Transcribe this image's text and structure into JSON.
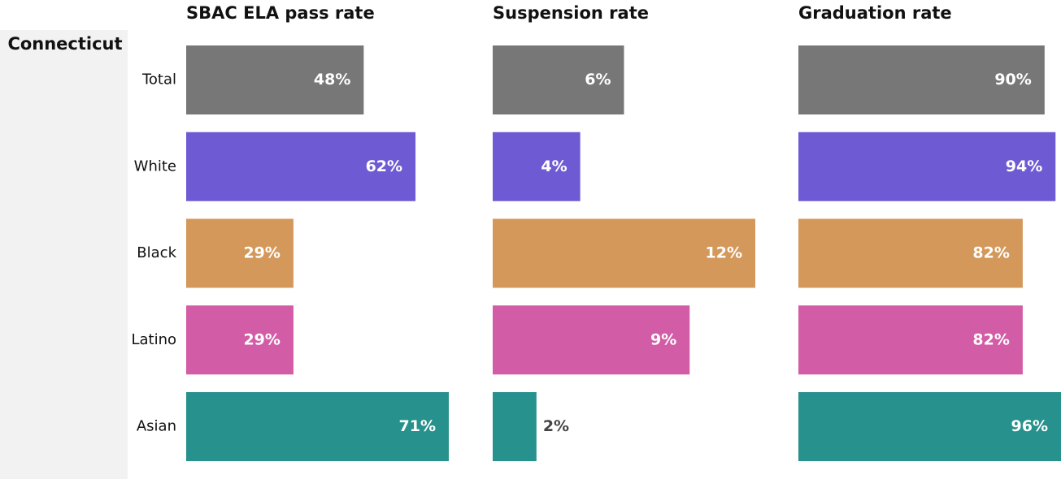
{
  "region": "Connecticut",
  "chart_data": [
    {
      "type": "bar",
      "title": "SBAC ELA pass rate",
      "categories": [
        "Total",
        "White",
        "Black",
        "Latino",
        "Asian"
      ],
      "values": [
        48,
        62,
        29,
        29,
        71
      ],
      "value_labels": [
        "48%",
        "62%",
        "29%",
        "29%",
        "71%"
      ],
      "colors": [
        "#777777",
        "#6e5bd3",
        "#d4985b",
        "#d35ca6",
        "#27918d"
      ],
      "xlim": [
        0,
        71
      ]
    },
    {
      "type": "bar",
      "title": "Suspension rate",
      "values": [
        6,
        4,
        12,
        9,
        2
      ],
      "value_labels": [
        "6%",
        "4%",
        "12%",
        "9%",
        "2%"
      ],
      "colors": [
        "#777777",
        "#6e5bd3",
        "#d4985b",
        "#d35ca6",
        "#27918d"
      ],
      "xlim": [
        0,
        12
      ]
    },
    {
      "type": "bar",
      "title": "Graduation rate",
      "values": [
        90,
        94,
        82,
        82,
        96
      ],
      "value_labels": [
        "90%",
        "94%",
        "82%",
        "82%",
        "96%"
      ],
      "colors": [
        "#777777",
        "#6e5bd3",
        "#d4985b",
        "#d35ca6",
        "#27918d"
      ],
      "xlim": [
        0,
        96
      ]
    }
  ]
}
